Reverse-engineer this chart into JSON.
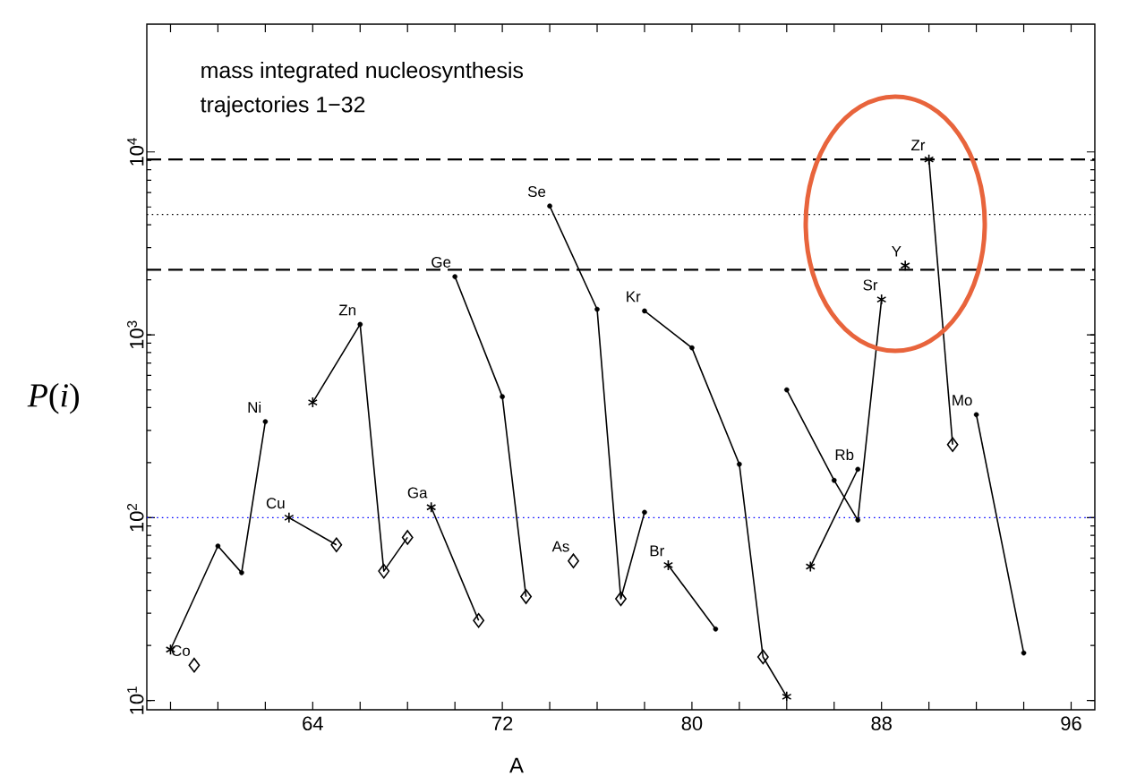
{
  "chart_data": {
    "type": "line",
    "xlabel": "A",
    "ylabel": "*P*(*i*)",
    "annotations": [
      "mass integrated nucleosynthesis",
      "trajectories 1−32"
    ],
    "log": true,
    "marker": "none",
    "xlim": [
      57,
      97
    ],
    "ylim": [
      8.9,
      50000
    ],
    "xticks": [
      {
        "value": 58,
        "label": null
      },
      {
        "value": 60,
        "label": null
      },
      {
        "value": 62,
        "label": null
      },
      64,
      {
        "value": 66,
        "label": null
      },
      {
        "value": 68,
        "label": null
      },
      {
        "value": 70,
        "label": null
      },
      72,
      {
        "value": 74,
        "label": null
      },
      {
        "value": 76,
        "label": null
      },
      {
        "value": 78,
        "label": null
      },
      80,
      {
        "value": 82,
        "label": null
      },
      {
        "value": 84,
        "label": null
      },
      {
        "value": 86,
        "label": null
      },
      88,
      {
        "value": 90,
        "label": null
      },
      {
        "value": 92,
        "label": null
      },
      {
        "value": 94,
        "label": null
      },
      96
    ],
    "yticks": [
      {
        "value": 10,
        "label": "10$^{1}$"
      },
      {
        "value": 100,
        "label": "10$^{2}$"
      },
      {
        "value": 1000,
        "label": "10$^{3}$"
      },
      {
        "value": 10000,
        "label": "10$^{4}$"
      }
    ],
    "ref_lines": [
      {
        "axis": "y",
        "value": 9100,
        "color": "#000000",
        "line_style": "dashed"
      },
      {
        "axis": "y",
        "value": 4550,
        "color": "#000000",
        "line_style": "dotted"
      },
      {
        "axis": "y",
        "value": 2270,
        "color": "#000000",
        "line_style": "dashed"
      },
      {
        "axis": "y",
        "value": 100,
        "color": "#0000ff",
        "line_style": "dotted"
      }
    ],
    "series": [
      {
        "name": "Co",
        "type": "scatter",
        "marker": "diamond",
        "color": "#000000",
        "x": [
          59
        ],
        "values": [
          15.6
        ]
      },
      {
        "name": "Ni",
        "color": "#000000",
        "x": [
          58,
          60,
          61,
          62
        ],
        "values": [
          19,
          70,
          50,
          335
        ]
      },
      {
        "name": "Cu",
        "color": "#000000",
        "x": [
          63,
          65
        ],
        "values": [
          100,
          71
        ]
      },
      {
        "name": "Zn",
        "color": "#000000",
        "x": [
          64,
          66,
          67,
          68
        ],
        "values": [
          427,
          1140,
          51,
          78
        ]
      },
      {
        "name": "Ga",
        "color": "#000000",
        "x": [
          69,
          71
        ],
        "values": [
          114,
          27.4
        ]
      },
      {
        "name": "Ge",
        "color": "#000000",
        "x": [
          70,
          72,
          73
        ],
        "values": [
          2080,
          459,
          37
        ]
      },
      {
        "name": "As",
        "type": "scatter",
        "marker": "diamond",
        "color": "#000000",
        "x": [
          75
        ],
        "values": [
          58
        ]
      },
      {
        "name": "Se",
        "color": "#000000",
        "x": [
          74,
          76,
          77,
          78
        ],
        "values": [
          5060,
          1380,
          36,
          107
        ]
      },
      {
        "name": "Br",
        "color": "#000000",
        "x": [
          79,
          81
        ],
        "values": [
          55,
          24.6
        ]
      },
      {
        "name": "Kr",
        "color": "#000000",
        "x": [
          78,
          80,
          82,
          83,
          84
        ],
        "values": [
          1350,
          849,
          196,
          17.3,
          10.5
        ]
      },
      {
        "name": "Rb",
        "color": "#000000",
        "x": [
          85,
          87
        ],
        "values": [
          54,
          184
        ]
      },
      {
        "name": "Sr",
        "color": "#000000",
        "x": [
          84,
          86,
          87,
          88
        ],
        "values": [
          500,
          160,
          97,
          1560
        ]
      },
      {
        "name": "Y",
        "type": "scatter",
        "marker": "cross",
        "color": "#000000",
        "x": [
          89
        ],
        "values": [
          2390
        ]
      },
      {
        "name": "Zr",
        "color": "#000000",
        "x": [
          90,
          91
        ],
        "values": [
          9100,
          251
        ]
      },
      {
        "name": "Mo",
        "color": "#000000",
        "x": [
          92,
          94
        ],
        "values": [
          366,
          18.2
        ]
      },
      {
        "type": "scatter",
        "marker": "circle",
        "color": "#000000",
        "x": [
          60,
          61,
          62,
          66,
          70,
          72,
          74,
          76,
          78,
          78,
          80,
          81,
          82,
          84,
          86,
          87,
          87,
          92,
          94
        ],
        "values": [
          70,
          50,
          335,
          1140,
          2080,
          459,
          5060,
          1380,
          107,
          1350,
          849,
          24.6,
          196,
          500,
          160,
          97,
          184,
          366,
          18.2
        ]
      },
      {
        "type": "scatter",
        "marker": "cross",
        "color": "#000000",
        "x": [
          58,
          63,
          64,
          69,
          79,
          84,
          85,
          88,
          90
        ],
        "values": [
          19,
          100,
          427,
          114,
          55,
          10.5,
          54,
          1560,
          9100
        ]
      },
      {
        "type": "scatter",
        "marker": "diamond",
        "color": "#000000",
        "x": [
          65,
          67,
          68,
          71,
          73,
          77,
          83,
          91
        ],
        "values": [
          71,
          51,
          78,
          27.4,
          37,
          36,
          17.3,
          251
        ]
      }
    ]
  }
}
